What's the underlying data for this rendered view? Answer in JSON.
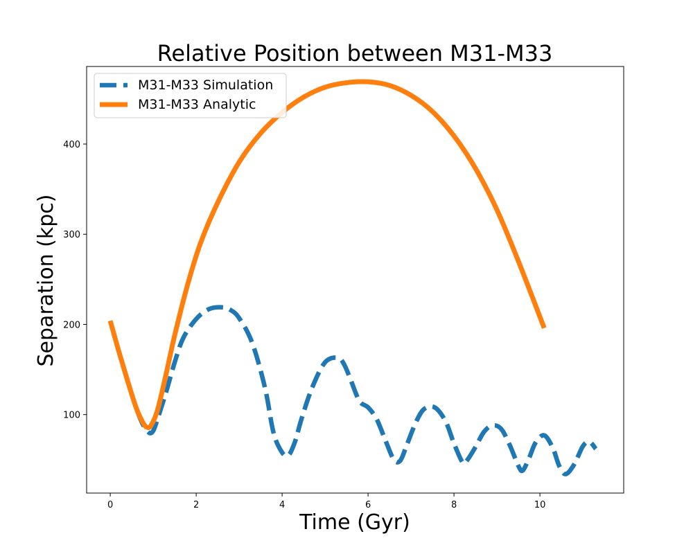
{
  "chart_data": {
    "type": "line",
    "title": "Relative Position between M31-M33",
    "xlabel": "Time (Gyr)",
    "ylabel": "Separation (kpc)",
    "xlim": [
      -0.55,
      11.95
    ],
    "ylim": [
      13,
      486
    ],
    "xticks": [
      0,
      2,
      4,
      6,
      8,
      10
    ],
    "yticks": [
      100,
      200,
      300,
      400
    ],
    "grid": false,
    "legend_position": "top-left",
    "series": [
      {
        "name": "M31-M33 Simulation",
        "color": "#1f77b4",
        "style": "dashed",
        "x": [
          0,
          0.2,
          0.4,
          0.6,
          0.75,
          0.9,
          1.0,
          1.1,
          1.3,
          1.5,
          1.7,
          2.0,
          2.3,
          2.6,
          2.8,
          3.0,
          3.3,
          3.6,
          3.8,
          4.0,
          4.15,
          4.3,
          4.45,
          4.7,
          5.0,
          5.3,
          5.45,
          5.6,
          5.8,
          6.0,
          6.2,
          6.4,
          6.6,
          6.75,
          6.9,
          7.1,
          7.3,
          7.55,
          7.8,
          8.0,
          8.2,
          8.3,
          8.5,
          8.7,
          8.9,
          9.1,
          9.3,
          9.5,
          9.6,
          9.75,
          9.9,
          10.1,
          10.3,
          10.45,
          10.6,
          10.8,
          11.0,
          11.15,
          11.3
        ],
        "y": [
          204,
          170,
          138,
          108,
          90,
          80,
          82,
          95,
          125,
          158,
          185,
          206,
          217,
          219,
          216,
          207,
          180,
          130,
          80,
          58,
          55,
          70,
          95,
          130,
          158,
          163,
          155,
          138,
          115,
          108,
          95,
          72,
          50,
          49,
          66,
          90,
          106,
          108,
          93,
          68,
          47,
          49,
          64,
          81,
          88,
          84,
          66,
          43,
          38,
          52,
          69,
          77,
          63,
          43,
          34,
          45,
          65,
          70,
          62
        ]
      },
      {
        "name": "M31-M33 Analytic",
        "color": "#ff7f0e",
        "style": "solid",
        "x": [
          0,
          0.2,
          0.4,
          0.6,
          0.75,
          0.85,
          0.95,
          1.1,
          1.3,
          1.5,
          1.8,
          2.1,
          2.5,
          3.0,
          3.5,
          4.0,
          4.5,
          5.0,
          5.5,
          6.0,
          6.5,
          7.0,
          7.5,
          8.0,
          8.5,
          9.0,
          9.5,
          10.1
        ],
        "y": [
          204,
          170,
          138,
          108,
          92,
          86,
          88,
          105,
          145,
          188,
          244,
          290,
          335,
          380,
          412,
          435,
          452,
          463,
          468,
          469,
          465,
          454,
          436,
          409,
          373,
          327,
          270,
          196
        ]
      }
    ]
  }
}
